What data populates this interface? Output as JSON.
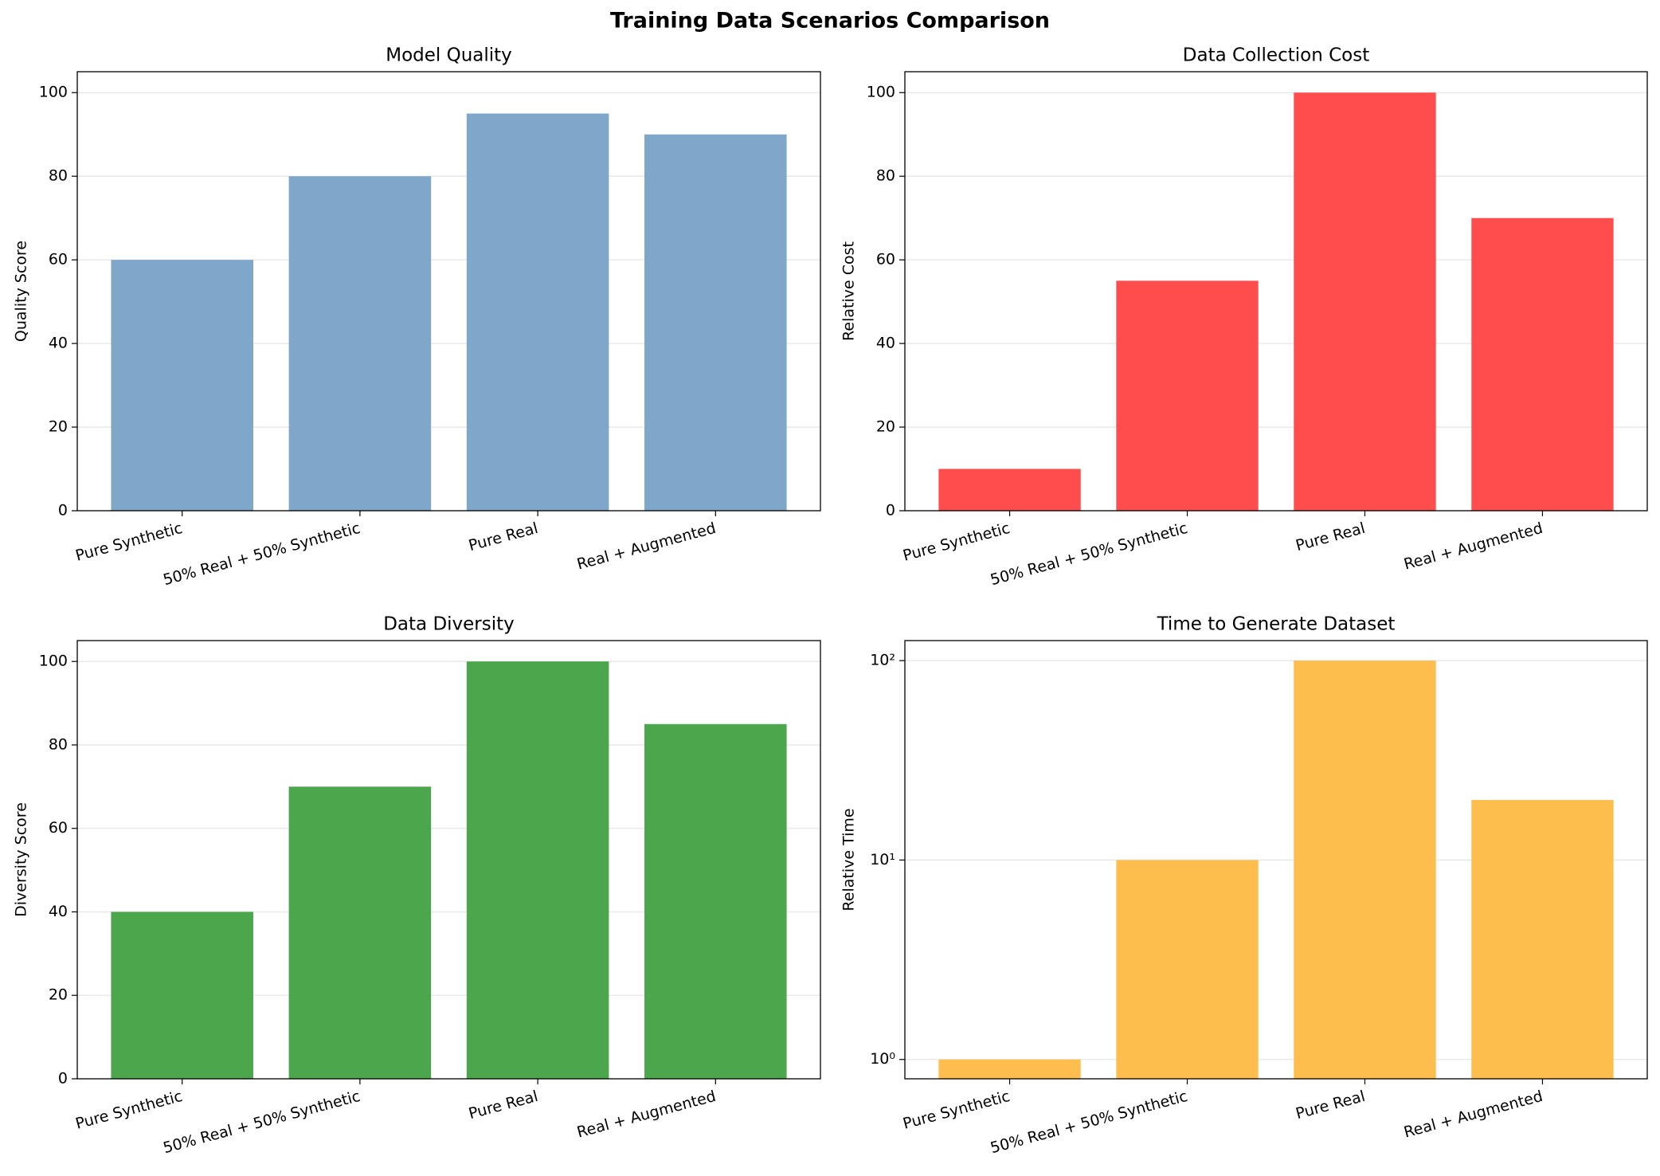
{
  "title": "Training Data Scenarios Comparison",
  "chart_data": [
    {
      "type": "bar",
      "title": "Model Quality",
      "ylabel": "Quality Score",
      "categories": [
        "Pure Synthetic",
        "50% Real + 50% Synthetic",
        "Pure Real",
        "Real + Augmented"
      ],
      "values": [
        60,
        80,
        95,
        90
      ],
      "color": "#7ea7c9",
      "ylim": [
        0,
        105
      ],
      "yticks": [
        0,
        20,
        40,
        60,
        80,
        100
      ],
      "grid": true,
      "log_scale": false
    },
    {
      "type": "bar",
      "title": "Data Collection Cost",
      "ylabel": "Relative Cost",
      "categories": [
        "Pure Synthetic",
        "50% Real + 50% Synthetic",
        "Pure Real",
        "Real + Augmented"
      ],
      "values": [
        10,
        55,
        100,
        70
      ],
      "color": "#ff4d4d",
      "ylim": [
        0,
        105
      ],
      "yticks": [
        0,
        20,
        40,
        60,
        80,
        100
      ],
      "grid": true,
      "log_scale": false
    },
    {
      "type": "bar",
      "title": "Data Diversity",
      "ylabel": "Diversity Score",
      "categories": [
        "Pure Synthetic",
        "50% Real + 50% Synthetic",
        "Pure Real",
        "Real + Augmented"
      ],
      "values": [
        40,
        70,
        100,
        85
      ],
      "color": "#4ca64c",
      "ylim": [
        0,
        105
      ],
      "yticks": [
        0,
        20,
        40,
        60,
        80,
        100
      ],
      "grid": true,
      "log_scale": false
    },
    {
      "type": "bar",
      "title": "Time to Generate Dataset",
      "ylabel": "Relative Time",
      "categories": [
        "Pure Synthetic",
        "50% Real + 50% Synthetic",
        "Pure Real",
        "Real + Augmented"
      ],
      "values": [
        1,
        10,
        100,
        20
      ],
      "color": "#fdbe4d",
      "ylim": [
        0.8,
        126
      ],
      "yticks": [
        {
          "value": 1,
          "label": "10⁰"
        },
        {
          "value": 10,
          "label": "10¹"
        },
        {
          "value": 100,
          "label": "10²"
        }
      ],
      "grid": true,
      "log_scale": true
    }
  ]
}
